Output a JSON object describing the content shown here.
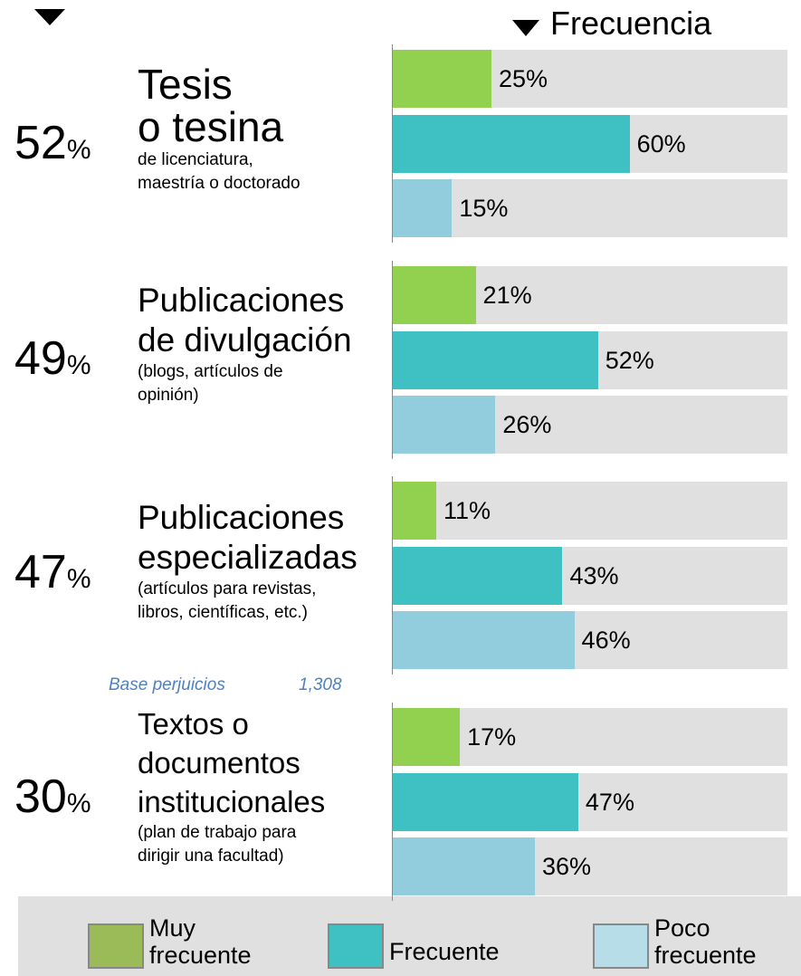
{
  "chart_data": {
    "type": "bar",
    "header": "Frecuencia",
    "total_unit": "%",
    "xlim": [
      0,
      100
    ],
    "groups": [
      {
        "total": 52,
        "title": [
          "Tesis",
          "o tesina"
        ],
        "subtitle": [
          "de licenciatura,",
          "maestría o doctorado"
        ]
      },
      {
        "total": 49,
        "title": [
          "Publicaciones",
          "de divulgación"
        ],
        "subtitle": [
          "(blogs, artículos de",
          "opinión)"
        ]
      },
      {
        "total": 47,
        "title": [
          "Publicaciones",
          "especializadas"
        ],
        "subtitle": [
          "(artículos para revistas,",
          "libros, científicas, etc.)"
        ]
      },
      {
        "total": 30,
        "title": [
          "Textos o",
          "documentos",
          "institucionales"
        ],
        "subtitle": [
          "(plan de trabajo para",
          "dirigir una facultad)"
        ]
      }
    ],
    "series": [
      {
        "name": "Muy frecuente",
        "color": "#92d050",
        "legend_color": "#9bbb59",
        "values": [
          25,
          21,
          11,
          17
        ],
        "value_labels": [
          "25%",
          "21%",
          "11%",
          "17%"
        ]
      },
      {
        "name": "Frecuente",
        "color": "#3fc1c3",
        "legend_color": "#3fc1c3",
        "values": [
          60,
          52,
          43,
          47
        ],
        "value_labels": [
          "60%",
          "52%",
          "43%",
          "47%"
        ]
      },
      {
        "name": "Poco frecuente",
        "color": "#92cddd",
        "legend_color": "#b7dde8",
        "values": [
          15,
          26,
          46,
          36
        ],
        "value_labels": [
          "15%",
          "26%",
          "46%",
          "36%"
        ]
      }
    ],
    "base_label": "Base perjuicios",
    "base_value": "1,308"
  }
}
